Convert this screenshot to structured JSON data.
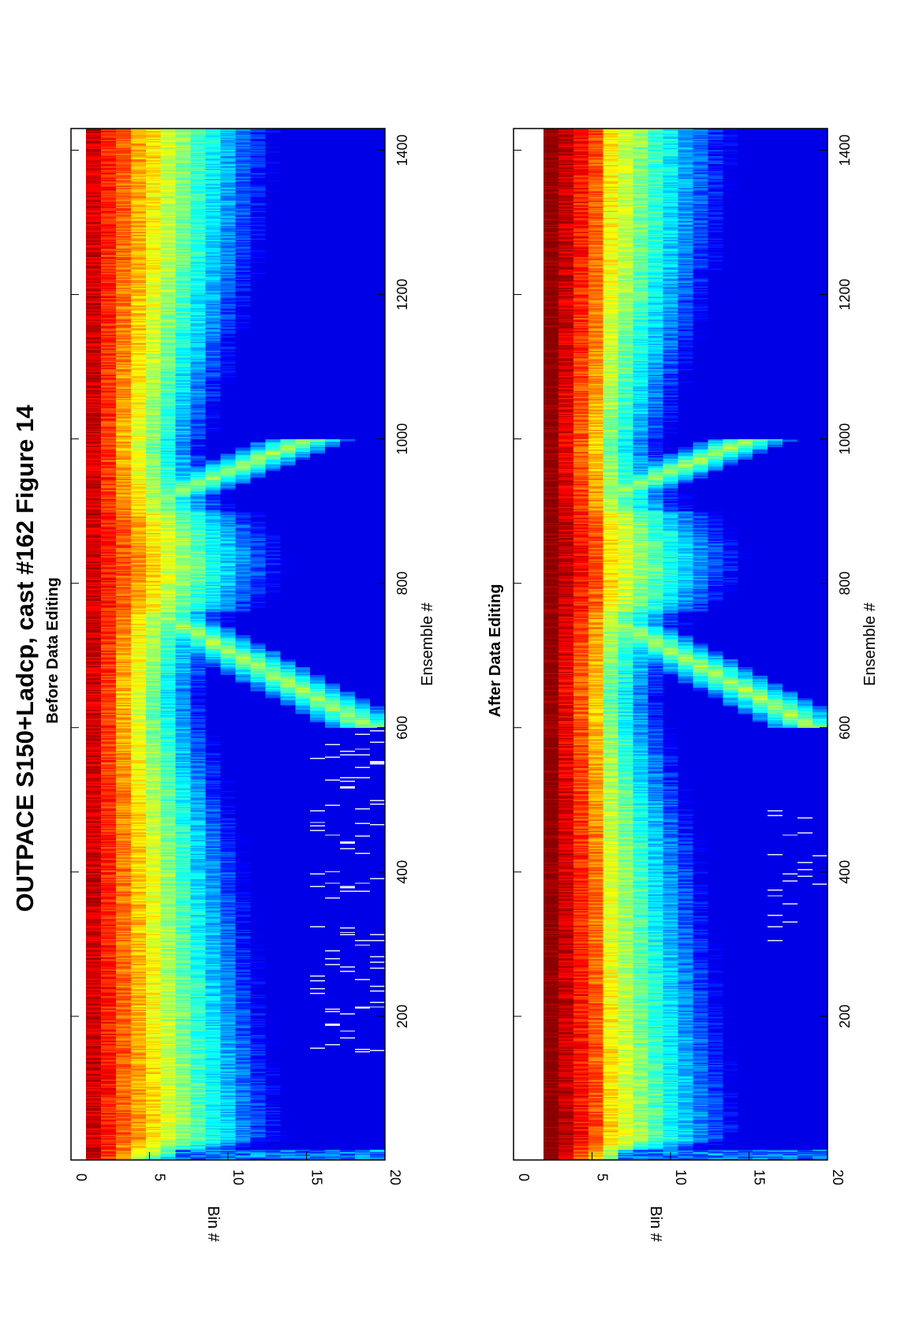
{
  "figure": {
    "title": "OUTPACE S150+Ladcp, cast #162  Figure 14"
  },
  "colormap": "jet",
  "chart_data": [
    {
      "type": "heatmap",
      "title": "Before Data Editing",
      "xlabel": "Bin #",
      "ylabel": "Ensemble #",
      "bin_range": [
        0,
        20
      ],
      "ensemble_range": [
        1,
        1430
      ],
      "bin_ticks": [
        "0",
        "5",
        "10",
        "15",
        "20"
      ],
      "ensemble_ticks": [
        "200",
        "400",
        "600",
        "800",
        "1000",
        "1200",
        "1400"
      ],
      "grid": false,
      "description_values": {
        "first_valid_bin": 1,
        "descent_end_ensemble": 640,
        "bottom_ensemble": 820,
        "ascent_start_ensemble": 1000
      }
    },
    {
      "type": "heatmap",
      "title": "After Data Editing",
      "xlabel": "Bin #",
      "ylabel": "Ensemble #",
      "bin_range": [
        0,
        20
      ],
      "ensemble_range": [
        1,
        1430
      ],
      "bin_ticks": [
        "0",
        "5",
        "10",
        "15",
        "20"
      ],
      "ensemble_ticks": [
        "200",
        "400",
        "600",
        "800",
        "1000",
        "1200",
        "1400"
      ],
      "grid": false,
      "description_values": {
        "first_valid_bin": 2,
        "descent_end_ensemble": 640,
        "bottom_ensemble": 820,
        "ascent_start_ensemble": 1000
      }
    }
  ]
}
